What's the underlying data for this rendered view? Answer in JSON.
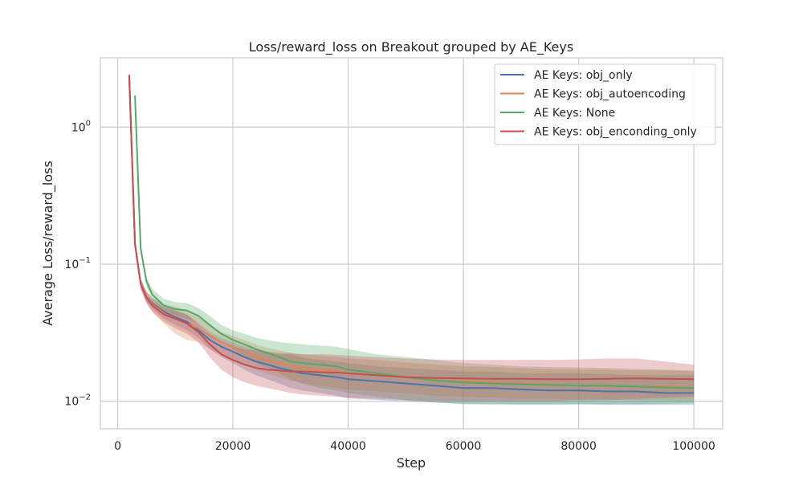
{
  "chart_data": {
    "type": "line",
    "title": "Loss/reward_loss on Breakout grouped by AE_Keys",
    "xlabel": "Step",
    "ylabel": "Average Loss/reward_loss",
    "yscale": "log",
    "xlim": [
      -3000,
      105000
    ],
    "ylim": [
      0.0063,
      3.2
    ],
    "xticks": [
      {
        "value": 0,
        "label": "0"
      },
      {
        "value": 20000,
        "label": "20000"
      },
      {
        "value": 40000,
        "label": "40000"
      },
      {
        "value": 60000,
        "label": "60000"
      },
      {
        "value": 80000,
        "label": "80000"
      },
      {
        "value": 100000,
        "label": "100000"
      }
    ],
    "yticks": [
      {
        "value": 0.01,
        "base": "10",
        "exp": "−2"
      },
      {
        "value": 0.1,
        "base": "10",
        "exp": "−1"
      },
      {
        "value": 1,
        "base": "10",
        "exp": "0"
      }
    ],
    "grid": true,
    "legend_position": "top-right",
    "series": [
      {
        "name": "AE Keys: obj_only",
        "color": "#4c72b0",
        "x": [
          2000,
          3000,
          4000,
          5000,
          6000,
          8000,
          10000,
          12000,
          14000,
          16000,
          18000,
          20000,
          22000,
          24000,
          26000,
          28000,
          30000,
          32000,
          35000,
          38000,
          40000,
          45000,
          50000,
          55000,
          60000,
          65000,
          70000,
          75000,
          80000,
          85000,
          90000,
          95000,
          100000
        ],
        "y": [
          2.4,
          0.14,
          0.072,
          0.058,
          0.052,
          0.045,
          0.041,
          0.038,
          0.033,
          0.028,
          0.025,
          0.023,
          0.021,
          0.0195,
          0.0185,
          0.0175,
          0.0168,
          0.016,
          0.0155,
          0.015,
          0.0145,
          0.014,
          0.0135,
          0.013,
          0.0125,
          0.0125,
          0.0122,
          0.012,
          0.012,
          0.0118,
          0.0118,
          0.0115,
          0.0115
        ],
        "lower": [
          2.4,
          0.13,
          0.066,
          0.053,
          0.047,
          0.04,
          0.036,
          0.033,
          0.029,
          0.024,
          0.021,
          0.019,
          0.017,
          0.0155,
          0.0145,
          0.0135,
          0.0125,
          0.012,
          0.0115,
          0.011,
          0.0105,
          0.0102,
          0.01,
          0.0098,
          0.0096,
          0.0096,
          0.0095,
          0.0095,
          0.0095,
          0.0094,
          0.0094,
          0.0094,
          0.0094
        ],
        "upper": [
          2.4,
          0.15,
          0.078,
          0.063,
          0.057,
          0.05,
          0.046,
          0.043,
          0.037,
          0.032,
          0.029,
          0.027,
          0.025,
          0.024,
          0.023,
          0.022,
          0.022,
          0.021,
          0.02,
          0.0195,
          0.019,
          0.018,
          0.0175,
          0.017,
          0.0165,
          0.0165,
          0.016,
          0.016,
          0.016,
          0.0158,
          0.0155,
          0.0155,
          0.0155
        ]
      },
      {
        "name": "AE Keys: obj_autoencoding",
        "color": "#dd8452",
        "x": [
          2000,
          3000,
          4000,
          5000,
          6000,
          8000,
          10000,
          12000,
          14000,
          16000,
          18000,
          20000,
          22000,
          24000,
          26000,
          28000,
          30000,
          32000,
          35000,
          38000,
          40000,
          45000,
          50000,
          55000,
          60000,
          65000,
          70000,
          75000,
          80000,
          85000,
          90000,
          95000,
          100000
        ],
        "y": [
          2.4,
          0.14,
          0.072,
          0.058,
          0.051,
          0.044,
          0.04,
          0.037,
          0.034,
          0.03,
          0.027,
          0.025,
          0.023,
          0.021,
          0.0198,
          0.019,
          0.018,
          0.0175,
          0.017,
          0.0165,
          0.016,
          0.0155,
          0.015,
          0.0142,
          0.014,
          0.0138,
          0.0135,
          0.0133,
          0.013,
          0.013,
          0.0128,
          0.0128,
          0.0125
        ],
        "lower": [
          2.4,
          0.13,
          0.066,
          0.052,
          0.045,
          0.037,
          0.031,
          0.028,
          0.027,
          0.024,
          0.022,
          0.02,
          0.0185,
          0.017,
          0.0158,
          0.015,
          0.0142,
          0.0135,
          0.013,
          0.0125,
          0.0122,
          0.0118,
          0.0115,
          0.011,
          0.0108,
          0.0106,
          0.0104,
          0.0104,
          0.0103,
          0.0103,
          0.0102,
          0.0102,
          0.0101
        ],
        "upper": [
          2.4,
          0.15,
          0.078,
          0.064,
          0.057,
          0.051,
          0.049,
          0.046,
          0.041,
          0.036,
          0.032,
          0.03,
          0.028,
          0.026,
          0.0245,
          0.0235,
          0.0225,
          0.022,
          0.0215,
          0.021,
          0.0205,
          0.02,
          0.0192,
          0.0185,
          0.018,
          0.0178,
          0.0174,
          0.0172,
          0.017,
          0.017,
          0.0168,
          0.0168,
          0.0165
        ]
      },
      {
        "name": "AE Keys: None",
        "color": "#55a868",
        "x": [
          3000,
          4000,
          5000,
          6000,
          8000,
          10000,
          12000,
          14000,
          16000,
          18000,
          20000,
          22000,
          24000,
          26000,
          28000,
          30000,
          32000,
          35000,
          38000,
          40000,
          45000,
          50000,
          55000,
          60000,
          65000,
          70000,
          75000,
          80000,
          85000,
          90000,
          95000,
          100000
        ],
        "y": [
          1.7,
          0.13,
          0.075,
          0.06,
          0.05,
          0.047,
          0.046,
          0.042,
          0.036,
          0.031,
          0.028,
          0.026,
          0.024,
          0.0225,
          0.021,
          0.0195,
          0.019,
          0.0185,
          0.018,
          0.017,
          0.016,
          0.015,
          0.0142,
          0.0137,
          0.0135,
          0.0133,
          0.0132,
          0.013,
          0.013,
          0.0128,
          0.0126,
          0.0125
        ],
        "lower": [
          1.7,
          0.12,
          0.069,
          0.055,
          0.045,
          0.042,
          0.04,
          0.037,
          0.031,
          0.027,
          0.024,
          0.021,
          0.019,
          0.0175,
          0.016,
          0.0145,
          0.0135,
          0.0125,
          0.012,
          0.0115,
          0.0108,
          0.0102,
          0.0098,
          0.0095,
          0.0094,
          0.0094,
          0.0094,
          0.0095,
          0.0095,
          0.0095,
          0.0096,
          0.0097
        ],
        "upper": [
          1.7,
          0.14,
          0.081,
          0.066,
          0.056,
          0.053,
          0.052,
          0.048,
          0.042,
          0.036,
          0.033,
          0.031,
          0.029,
          0.028,
          0.027,
          0.0265,
          0.026,
          0.0255,
          0.025,
          0.024,
          0.022,
          0.021,
          0.02,
          0.019,
          0.0185,
          0.018,
          0.0178,
          0.0176,
          0.0175,
          0.0172,
          0.017,
          0.0168
        ]
      },
      {
        "name": "AE Keys: obj_enconding_only",
        "color": "#c44e52",
        "x": [
          2000,
          3000,
          4000,
          5000,
          6000,
          8000,
          10000,
          12000,
          14000,
          16000,
          18000,
          20000,
          22000,
          24000,
          26000,
          28000,
          30000,
          32000,
          35000,
          38000,
          40000,
          45000,
          50000,
          55000,
          60000,
          65000,
          70000,
          75000,
          80000,
          85000,
          90000,
          95000,
          100000
        ],
        "y": [
          2.4,
          0.14,
          0.072,
          0.057,
          0.05,
          0.043,
          0.04,
          0.037,
          0.032,
          0.026,
          0.022,
          0.02,
          0.0185,
          0.0175,
          0.017,
          0.0168,
          0.0165,
          0.0165,
          0.0163,
          0.0162,
          0.016,
          0.0155,
          0.015,
          0.0148,
          0.0147,
          0.0146,
          0.0146,
          0.0145,
          0.0145,
          0.0146,
          0.0147,
          0.0146,
          0.0145
        ],
        "lower": [
          2.4,
          0.13,
          0.066,
          0.052,
          0.045,
          0.038,
          0.034,
          0.031,
          0.027,
          0.021,
          0.017,
          0.015,
          0.0138,
          0.013,
          0.0125,
          0.012,
          0.0115,
          0.0112,
          0.011,
          0.0108,
          0.0106,
          0.0104,
          0.0102,
          0.01,
          0.01,
          0.01,
          0.01,
          0.01,
          0.0102,
          0.0102,
          0.0104,
          0.0106,
          0.0108
        ],
        "upper": [
          2.4,
          0.15,
          0.078,
          0.062,
          0.055,
          0.048,
          0.046,
          0.043,
          0.037,
          0.031,
          0.027,
          0.025,
          0.024,
          0.0235,
          0.023,
          0.0225,
          0.0225,
          0.022,
          0.022,
          0.0218,
          0.0215,
          0.021,
          0.0205,
          0.0202,
          0.02,
          0.02,
          0.02,
          0.02,
          0.0202,
          0.0205,
          0.0205,
          0.0195,
          0.0185
        ]
      }
    ]
  }
}
